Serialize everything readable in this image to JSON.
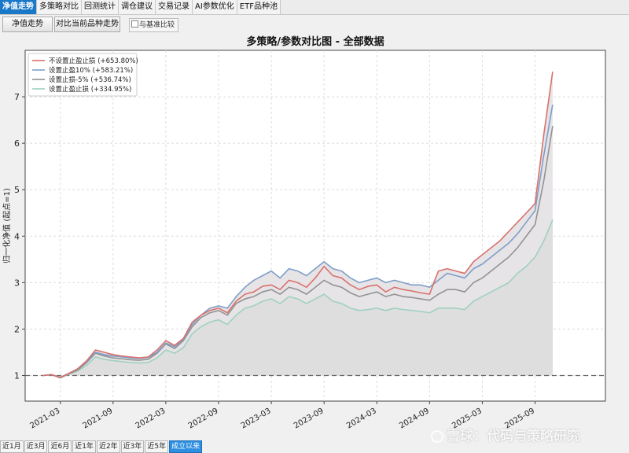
{
  "tabs": [
    {
      "label": "净值走势",
      "active": true
    },
    {
      "label": "多策略对比",
      "active": false
    },
    {
      "label": "回测统计",
      "active": false
    },
    {
      "label": "调仓建议",
      "active": false
    },
    {
      "label": "交易记录",
      "active": false
    },
    {
      "label": "AI参数优化",
      "active": false
    },
    {
      "label": "ETF品种池",
      "active": false
    }
  ],
  "toolbar": {
    "nav_button": "净值走势",
    "compare_button": "对比当前品种走势",
    "benchmark_checkbox": "与基准比较",
    "benchmark_checked": false
  },
  "range_buttons": [
    {
      "label": "近1月",
      "active": false
    },
    {
      "label": "近3月",
      "active": false
    },
    {
      "label": "近6月",
      "active": false
    },
    {
      "label": "近1年",
      "active": false
    },
    {
      "label": "近2年",
      "active": false
    },
    {
      "label": "近3年",
      "active": false
    },
    {
      "label": "近5年",
      "active": false
    },
    {
      "label": "成立以来",
      "active": true
    }
  ],
  "watermark": "雪球：代码与策略研究",
  "chart_data": {
    "type": "line",
    "title": "多策略/参数对比图 - 全部数据",
    "ylabel": "归一化净值 (起点=1)",
    "xlabel": "",
    "ylim": [
      0.45,
      8.0
    ],
    "yticks": [
      1,
      2,
      3,
      4,
      5,
      6,
      7
    ],
    "xticks": [
      "2021-03",
      "2021-09",
      "2022-03",
      "2022-09",
      "2023-03",
      "2023-09",
      "2024-03",
      "2024-09",
      "2025-03",
      "2025-09"
    ],
    "grid": true,
    "legend": "top-left",
    "baseline": 1,
    "series": [
      {
        "name": "不设置止盈止损 (+653.80%)",
        "color": "#d9716d",
        "x": [
          "2021-01",
          "2021-02",
          "2021-03",
          "2021-04",
          "2021-05",
          "2021-06",
          "2021-07",
          "2021-08",
          "2021-09",
          "2021-10",
          "2021-11",
          "2021-12",
          "2022-01",
          "2022-02",
          "2022-03",
          "2022-04",
          "2022-05",
          "2022-06",
          "2022-07",
          "2022-08",
          "2022-09",
          "2022-10",
          "2022-11",
          "2022-12",
          "2023-01",
          "2023-02",
          "2023-03",
          "2023-04",
          "2023-05",
          "2023-06",
          "2023-07",
          "2023-08",
          "2023-09",
          "2023-10",
          "2023-11",
          "2023-12",
          "2024-01",
          "2024-02",
          "2024-03",
          "2024-04",
          "2024-05",
          "2024-06",
          "2024-07",
          "2024-08",
          "2024-09",
          "2024-10",
          "2024-11",
          "2024-12",
          "2025-01",
          "2025-02",
          "2025-03",
          "2025-04",
          "2025-05",
          "2025-06",
          "2025-07",
          "2025-08",
          "2025-09",
          "2025-10",
          "2025-11"
        ],
        "values": [
          1.0,
          1.02,
          0.96,
          1.05,
          1.15,
          1.32,
          1.55,
          1.5,
          1.45,
          1.42,
          1.4,
          1.38,
          1.4,
          1.55,
          1.75,
          1.65,
          1.8,
          2.15,
          2.3,
          2.4,
          2.45,
          2.35,
          2.6,
          2.75,
          2.8,
          2.92,
          2.95,
          2.85,
          3.05,
          3.0,
          2.9,
          3.1,
          3.35,
          3.15,
          3.1,
          2.95,
          2.85,
          2.92,
          2.95,
          2.8,
          2.9,
          2.85,
          2.82,
          2.78,
          2.75,
          3.25,
          3.3,
          3.25,
          3.2,
          3.45,
          3.6,
          3.75,
          3.9,
          4.1,
          4.3,
          4.5,
          4.7,
          6.2,
          7.54
        ]
      },
      {
        "name": "设置止盈10% (+583.21%)",
        "color": "#7f9ec8",
        "x": [
          "2021-01",
          "2021-02",
          "2021-03",
          "2021-04",
          "2021-05",
          "2021-06",
          "2021-07",
          "2021-08",
          "2021-09",
          "2021-10",
          "2021-11",
          "2021-12",
          "2022-01",
          "2022-02",
          "2022-03",
          "2022-04",
          "2022-05",
          "2022-06",
          "2022-07",
          "2022-08",
          "2022-09",
          "2022-10",
          "2022-11",
          "2022-12",
          "2023-01",
          "2023-02",
          "2023-03",
          "2023-04",
          "2023-05",
          "2023-06",
          "2023-07",
          "2023-08",
          "2023-09",
          "2023-10",
          "2023-11",
          "2023-12",
          "2024-01",
          "2024-02",
          "2024-03",
          "2024-04",
          "2024-05",
          "2024-06",
          "2024-07",
          "2024-08",
          "2024-09",
          "2024-10",
          "2024-11",
          "2024-12",
          "2025-01",
          "2025-02",
          "2025-03",
          "2025-04",
          "2025-05",
          "2025-06",
          "2025-07",
          "2025-08",
          "2025-09",
          "2025-10",
          "2025-11"
        ],
        "values": [
          1.0,
          1.02,
          0.96,
          1.05,
          1.15,
          1.3,
          1.5,
          1.45,
          1.42,
          1.4,
          1.38,
          1.37,
          1.39,
          1.5,
          1.7,
          1.62,
          1.78,
          2.1,
          2.3,
          2.45,
          2.5,
          2.45,
          2.7,
          2.9,
          3.05,
          3.15,
          3.25,
          3.1,
          3.3,
          3.25,
          3.15,
          3.3,
          3.45,
          3.3,
          3.25,
          3.1,
          3.0,
          3.05,
          3.1,
          3.0,
          3.05,
          3.0,
          2.95,
          2.95,
          2.9,
          3.05,
          3.2,
          3.15,
          3.1,
          3.3,
          3.4,
          3.55,
          3.7,
          3.85,
          4.05,
          4.3,
          4.55,
          5.75,
          6.83
        ]
      },
      {
        "name": "设置止损-5% (+536.74%)",
        "color": "#939393",
        "x": [
          "2021-01",
          "2021-02",
          "2021-03",
          "2021-04",
          "2021-05",
          "2021-06",
          "2021-07",
          "2021-08",
          "2021-09",
          "2021-10",
          "2021-11",
          "2021-12",
          "2022-01",
          "2022-02",
          "2022-03",
          "2022-04",
          "2022-05",
          "2022-06",
          "2022-07",
          "2022-08",
          "2022-09",
          "2022-10",
          "2022-11",
          "2022-12",
          "2023-01",
          "2023-02",
          "2023-03",
          "2023-04",
          "2023-05",
          "2023-06",
          "2023-07",
          "2023-08",
          "2023-09",
          "2023-10",
          "2023-11",
          "2023-12",
          "2024-01",
          "2024-02",
          "2024-03",
          "2024-04",
          "2024-05",
          "2024-06",
          "2024-07",
          "2024-08",
          "2024-09",
          "2024-10",
          "2024-11",
          "2024-12",
          "2025-01",
          "2025-02",
          "2025-03",
          "2025-04",
          "2025-05",
          "2025-06",
          "2025-07",
          "2025-08",
          "2025-09",
          "2025-10",
          "2025-11"
        ],
        "values": [
          1.0,
          1.02,
          0.95,
          1.04,
          1.12,
          1.28,
          1.48,
          1.42,
          1.38,
          1.36,
          1.34,
          1.33,
          1.35,
          1.48,
          1.68,
          1.58,
          1.75,
          2.05,
          2.25,
          2.35,
          2.4,
          2.3,
          2.55,
          2.65,
          2.7,
          2.8,
          2.85,
          2.75,
          2.9,
          2.85,
          2.75,
          2.9,
          3.05,
          2.95,
          2.9,
          2.78,
          2.7,
          2.75,
          2.8,
          2.7,
          2.75,
          2.7,
          2.68,
          2.65,
          2.62,
          2.75,
          2.85,
          2.85,
          2.8,
          3.0,
          3.1,
          3.25,
          3.4,
          3.55,
          3.75,
          4.0,
          4.25,
          5.2,
          6.37
        ]
      },
      {
        "name": "设置止盈止损 (+334.95%)",
        "color": "#9fd1bf",
        "x": [
          "2021-01",
          "2021-02",
          "2021-03",
          "2021-04",
          "2021-05",
          "2021-06",
          "2021-07",
          "2021-08",
          "2021-09",
          "2021-10",
          "2021-11",
          "2021-12",
          "2022-01",
          "2022-02",
          "2022-03",
          "2022-04",
          "2022-05",
          "2022-06",
          "2022-07",
          "2022-08",
          "2022-09",
          "2022-10",
          "2022-11",
          "2022-12",
          "2023-01",
          "2023-02",
          "2023-03",
          "2023-04",
          "2023-05",
          "2023-06",
          "2023-07",
          "2023-08",
          "2023-09",
          "2023-10",
          "2023-11",
          "2023-12",
          "2024-01",
          "2024-02",
          "2024-03",
          "2024-04",
          "2024-05",
          "2024-06",
          "2024-07",
          "2024-08",
          "2024-09",
          "2024-10",
          "2024-11",
          "2024-12",
          "2025-01",
          "2025-02",
          "2025-03",
          "2025-04",
          "2025-05",
          "2025-06",
          "2025-07",
          "2025-08",
          "2025-09",
          "2025-10",
          "2025-11"
        ],
        "values": [
          1.0,
          1.02,
          0.95,
          1.03,
          1.1,
          1.22,
          1.4,
          1.35,
          1.32,
          1.3,
          1.28,
          1.27,
          1.28,
          1.38,
          1.55,
          1.48,
          1.6,
          1.9,
          2.05,
          2.15,
          2.2,
          2.1,
          2.3,
          2.45,
          2.5,
          2.6,
          2.65,
          2.55,
          2.7,
          2.65,
          2.55,
          2.65,
          2.75,
          2.6,
          2.55,
          2.45,
          2.4,
          2.42,
          2.45,
          2.4,
          2.45,
          2.42,
          2.4,
          2.38,
          2.35,
          2.45,
          2.45,
          2.45,
          2.42,
          2.6,
          2.7,
          2.8,
          2.9,
          3.0,
          3.2,
          3.35,
          3.55,
          3.9,
          4.35
        ]
      }
    ]
  }
}
